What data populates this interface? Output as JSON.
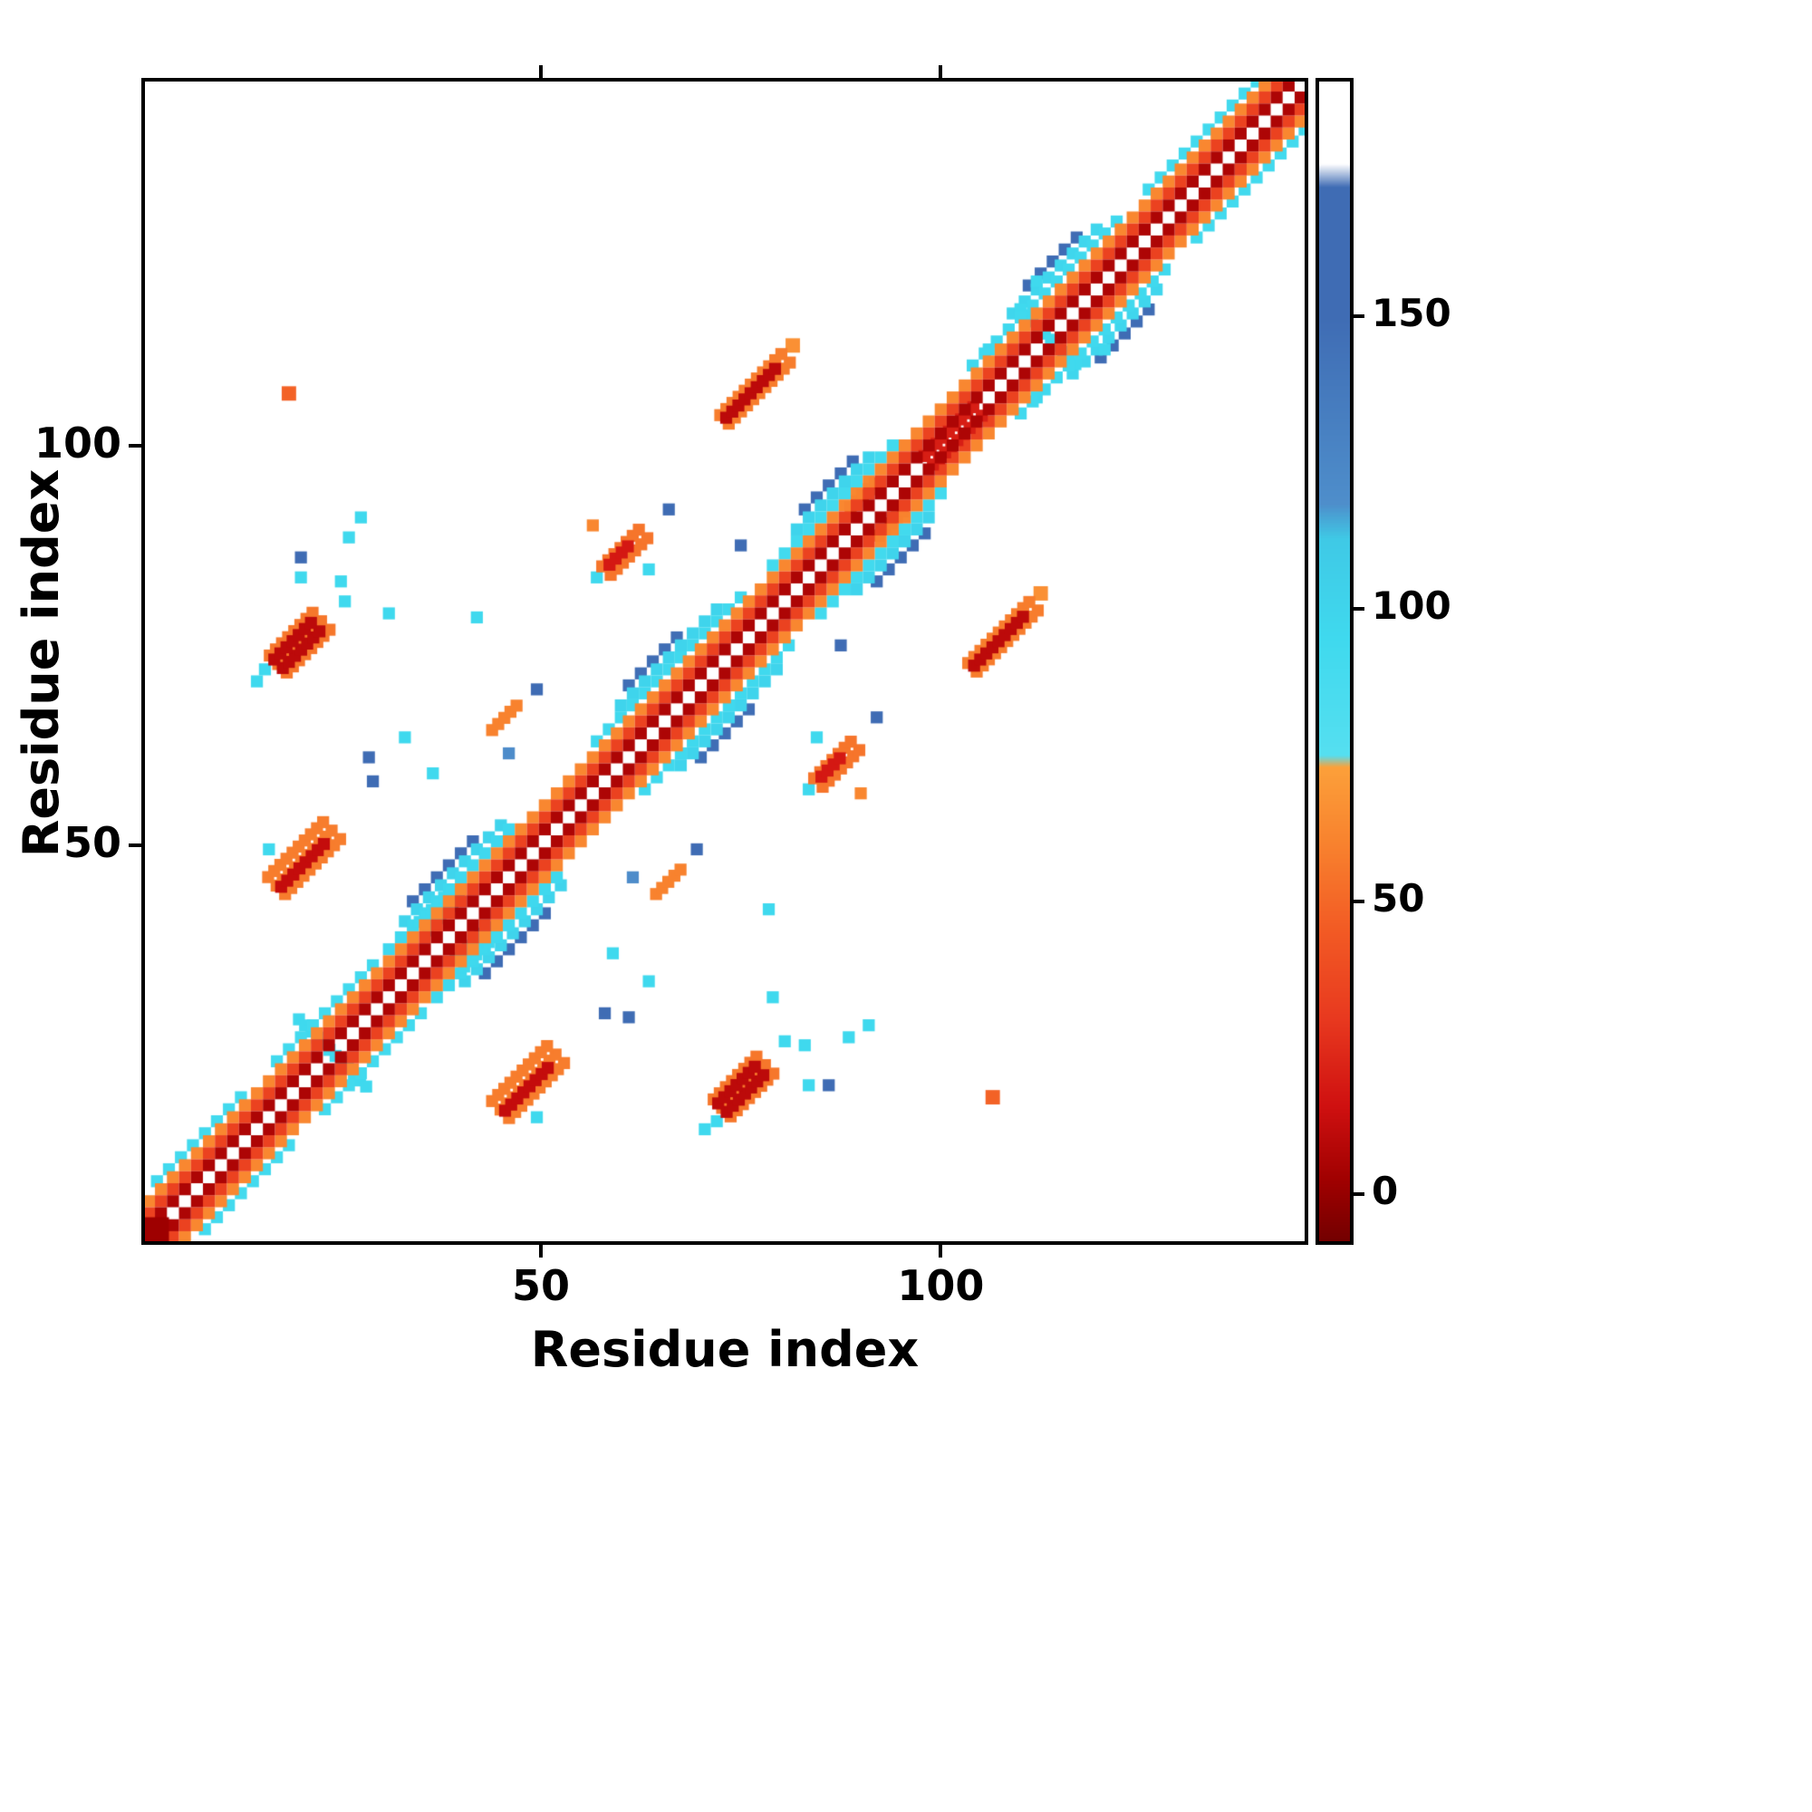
{
  "chart_data": {
    "type": "heatmap",
    "title": "",
    "xlabel": "Residue index",
    "ylabel": "Residue index",
    "x_range": [
      0.5,
      145.5
    ],
    "y_range": [
      0.5,
      145.5
    ],
    "x_ticks": [
      50,
      100
    ],
    "y_ticks": [
      50,
      100
    ],
    "grid": false,
    "symmetric": true,
    "cell": 1.5,
    "background": "#ffffff",
    "colormap": {
      "vmin": -8,
      "vmax": 190,
      "stops": [
        [
          -8,
          "#730000"
        ],
        [
          2,
          "#9e0000"
        ],
        [
          15,
          "#cf1010"
        ],
        [
          30,
          "#e8391f"
        ],
        [
          45,
          "#f25a24"
        ],
        [
          60,
          "#f8822e"
        ],
        [
          73,
          "#fca03a"
        ],
        [
          75,
          "#55dff0"
        ],
        [
          95,
          "#3fd9ee"
        ],
        [
          112,
          "#3fc9e6"
        ],
        [
          118,
          "#4e8ecb"
        ],
        [
          150,
          "#3f6cb4"
        ],
        [
          172,
          "#3f6cb4"
        ],
        [
          176,
          "#ffffff"
        ],
        [
          190,
          "#ffffff"
        ]
      ]
    },
    "colorbar": {
      "ticks": [
        0,
        50,
        100,
        150
      ]
    },
    "features": {
      "bands": [
        {
          "o": 1.5,
          "a": 1,
          "b": 145,
          "v": 6
        },
        {
          "o": 3.0,
          "a": 1,
          "b": 145,
          "v": 34
        },
        {
          "o": 4.5,
          "a": 1,
          "b": 145,
          "v": 62
        },
        {
          "o": 6.0,
          "a": 2,
          "b": 13,
          "v": 92
        },
        {
          "o": 6.0,
          "a": 17,
          "b": 30,
          "v": 92
        },
        {
          "o": 6.0,
          "a": 31,
          "b": 47,
          "v": 96
        },
        {
          "o": 7.5,
          "a": 33,
          "b": 45,
          "v": 100
        },
        {
          "o": 6.0,
          "a": 57,
          "b": 76,
          "v": 94
        },
        {
          "o": 7.5,
          "a": 60,
          "b": 73,
          "v": 100
        },
        {
          "o": 6.0,
          "a": 79,
          "b": 95,
          "v": 92
        },
        {
          "o": 7.5,
          "a": 82,
          "b": 92,
          "v": 100
        },
        {
          "o": 6.0,
          "a": 104,
          "b": 123,
          "v": 94
        },
        {
          "o": 7.5,
          "a": 109,
          "b": 120,
          "v": 98
        },
        {
          "o": 6.0,
          "a": 126,
          "b": 143,
          "v": 92
        },
        {
          "o": 9.0,
          "a": 34,
          "b": 42,
          "v": 150
        },
        {
          "o": 9.0,
          "a": 61,
          "b": 68,
          "v": 148
        },
        {
          "o": 9.0,
          "a": 83,
          "b": 90,
          "v": 152
        },
        {
          "o": 9.0,
          "a": 111,
          "b": 118,
          "v": 150
        }
      ],
      "streaks": [
        {
          "x": 20.5,
          "y": 48.5,
          "len": 10,
          "w": 4.5,
          "v": 58,
          "dir": 1
        },
        {
          "x": 20.0,
          "y": 48.0,
          "len": 8,
          "w": 2.5,
          "v": 12,
          "dir": 1
        },
        {
          "x": 20.0,
          "y": 75.5,
          "len": 8,
          "w": 4.5,
          "v": 56,
          "dir": 1
        },
        {
          "x": 19.5,
          "y": 75.0,
          "len": 6.5,
          "w": 3.0,
          "v": 10,
          "dir": 1
        },
        {
          "x": 60.5,
          "y": 87.0,
          "len": 7,
          "w": 3.5,
          "v": 55,
          "dir": 1
        },
        {
          "x": 60.0,
          "y": 86.5,
          "len": 4,
          "w": 1.5,
          "v": 18,
          "dir": 1
        },
        {
          "x": 76.5,
          "y": 107.5,
          "len": 11,
          "w": 4.0,
          "v": 58,
          "dir": 1
        },
        {
          "x": 76.0,
          "y": 107.0,
          "len": 9,
          "w": 2.5,
          "v": 10,
          "dir": 1
        },
        {
          "x": 101.5,
          "y": 101.5,
          "len": 9,
          "w": 3.5,
          "v": 20,
          "dir": 1
        },
        {
          "x": 45.5,
          "y": 66.0,
          "len": 4.5,
          "w": 1.5,
          "v": 60,
          "dir": 1
        },
        {
          "x": 24.0,
          "y": 24.0,
          "len": 12,
          "w": 1.5,
          "v": 95,
          "dir": -1
        },
        {
          "x": 113.5,
          "y": 113.5,
          "len": 10,
          "w": 1.5,
          "v": 95,
          "dir": -1
        },
        {
          "x": 90.5,
          "y": 94.0,
          "len": 5,
          "w": 1.5,
          "v": 60,
          "dir": 1
        },
        {
          "x": 42.0,
          "y": 37.5,
          "len": 6,
          "w": 3.0,
          "v": 95,
          "dir": 1
        }
      ],
      "dots": [
        {
          "x": 15.5,
          "y": 72.0,
          "v": 95,
          "s": 1.5
        },
        {
          "x": 14.5,
          "y": 70.5,
          "v": 95,
          "s": 1.5
        },
        {
          "x": 20.0,
          "y": 83.5,
          "v": 95,
          "s": 1.5
        },
        {
          "x": 25.5,
          "y": 80.5,
          "v": 95,
          "s": 1.5
        },
        {
          "x": 42.0,
          "y": 78.5,
          "v": 95,
          "s": 1.5
        },
        {
          "x": 33.0,
          "y": 63.5,
          "v": 95,
          "s": 1.5
        },
        {
          "x": 28.5,
          "y": 61.0,
          "v": 150,
          "s": 1.5
        },
        {
          "x": 18.5,
          "y": 106.5,
          "v": 48,
          "s": 1.8
        },
        {
          "x": 49.5,
          "y": 16.0,
          "v": 95,
          "s": 1.5
        },
        {
          "x": 69.5,
          "y": 49.5,
          "v": 150,
          "s": 1.5
        },
        {
          "x": 86.0,
          "y": 20.0,
          "v": 150,
          "s": 1.5
        },
        {
          "x": 83.0,
          "y": 25.0,
          "v": 95,
          "s": 1.5
        },
        {
          "x": 91.0,
          "y": 27.5,
          "v": 95,
          "s": 1.5
        },
        {
          "x": 88.5,
          "y": 26.0,
          "v": 95,
          "s": 1.5
        },
        {
          "x": 29.0,
          "y": 58.0,
          "v": 150,
          "s": 1.5
        },
        {
          "x": 63.5,
          "y": 84.5,
          "v": 95,
          "s": 1.5
        },
        {
          "x": 57.0,
          "y": 83.5,
          "v": 95,
          "s": 1.5
        },
        {
          "x": 66.0,
          "y": 92.0,
          "v": 150,
          "s": 1.5
        },
        {
          "x": 56.5,
          "y": 90.0,
          "v": 62,
          "s": 1.5
        },
        {
          "x": 81.5,
          "y": 112.5,
          "v": 66,
          "s": 1.8
        },
        {
          "x": 106.0,
          "y": 112.0,
          "v": 95,
          "s": 1.5
        },
        {
          "x": 112.0,
          "y": 120.5,
          "v": 95,
          "s": 1.5
        },
        {
          "x": 79.0,
          "y": 31.0,
          "v": 95,
          "s": 1.5
        },
        {
          "x": 59.0,
          "y": 36.5,
          "v": 95,
          "s": 1.5
        },
        {
          "x": 2.0,
          "y": 2.0,
          "v": 2,
          "s": 3.0
        },
        {
          "x": 75.0,
          "y": 87.5,
          "v": 150,
          "s": 1.5
        },
        {
          "x": 61.5,
          "y": 46.0,
          "v": 120,
          "s": 1.5
        }
      ]
    }
  }
}
